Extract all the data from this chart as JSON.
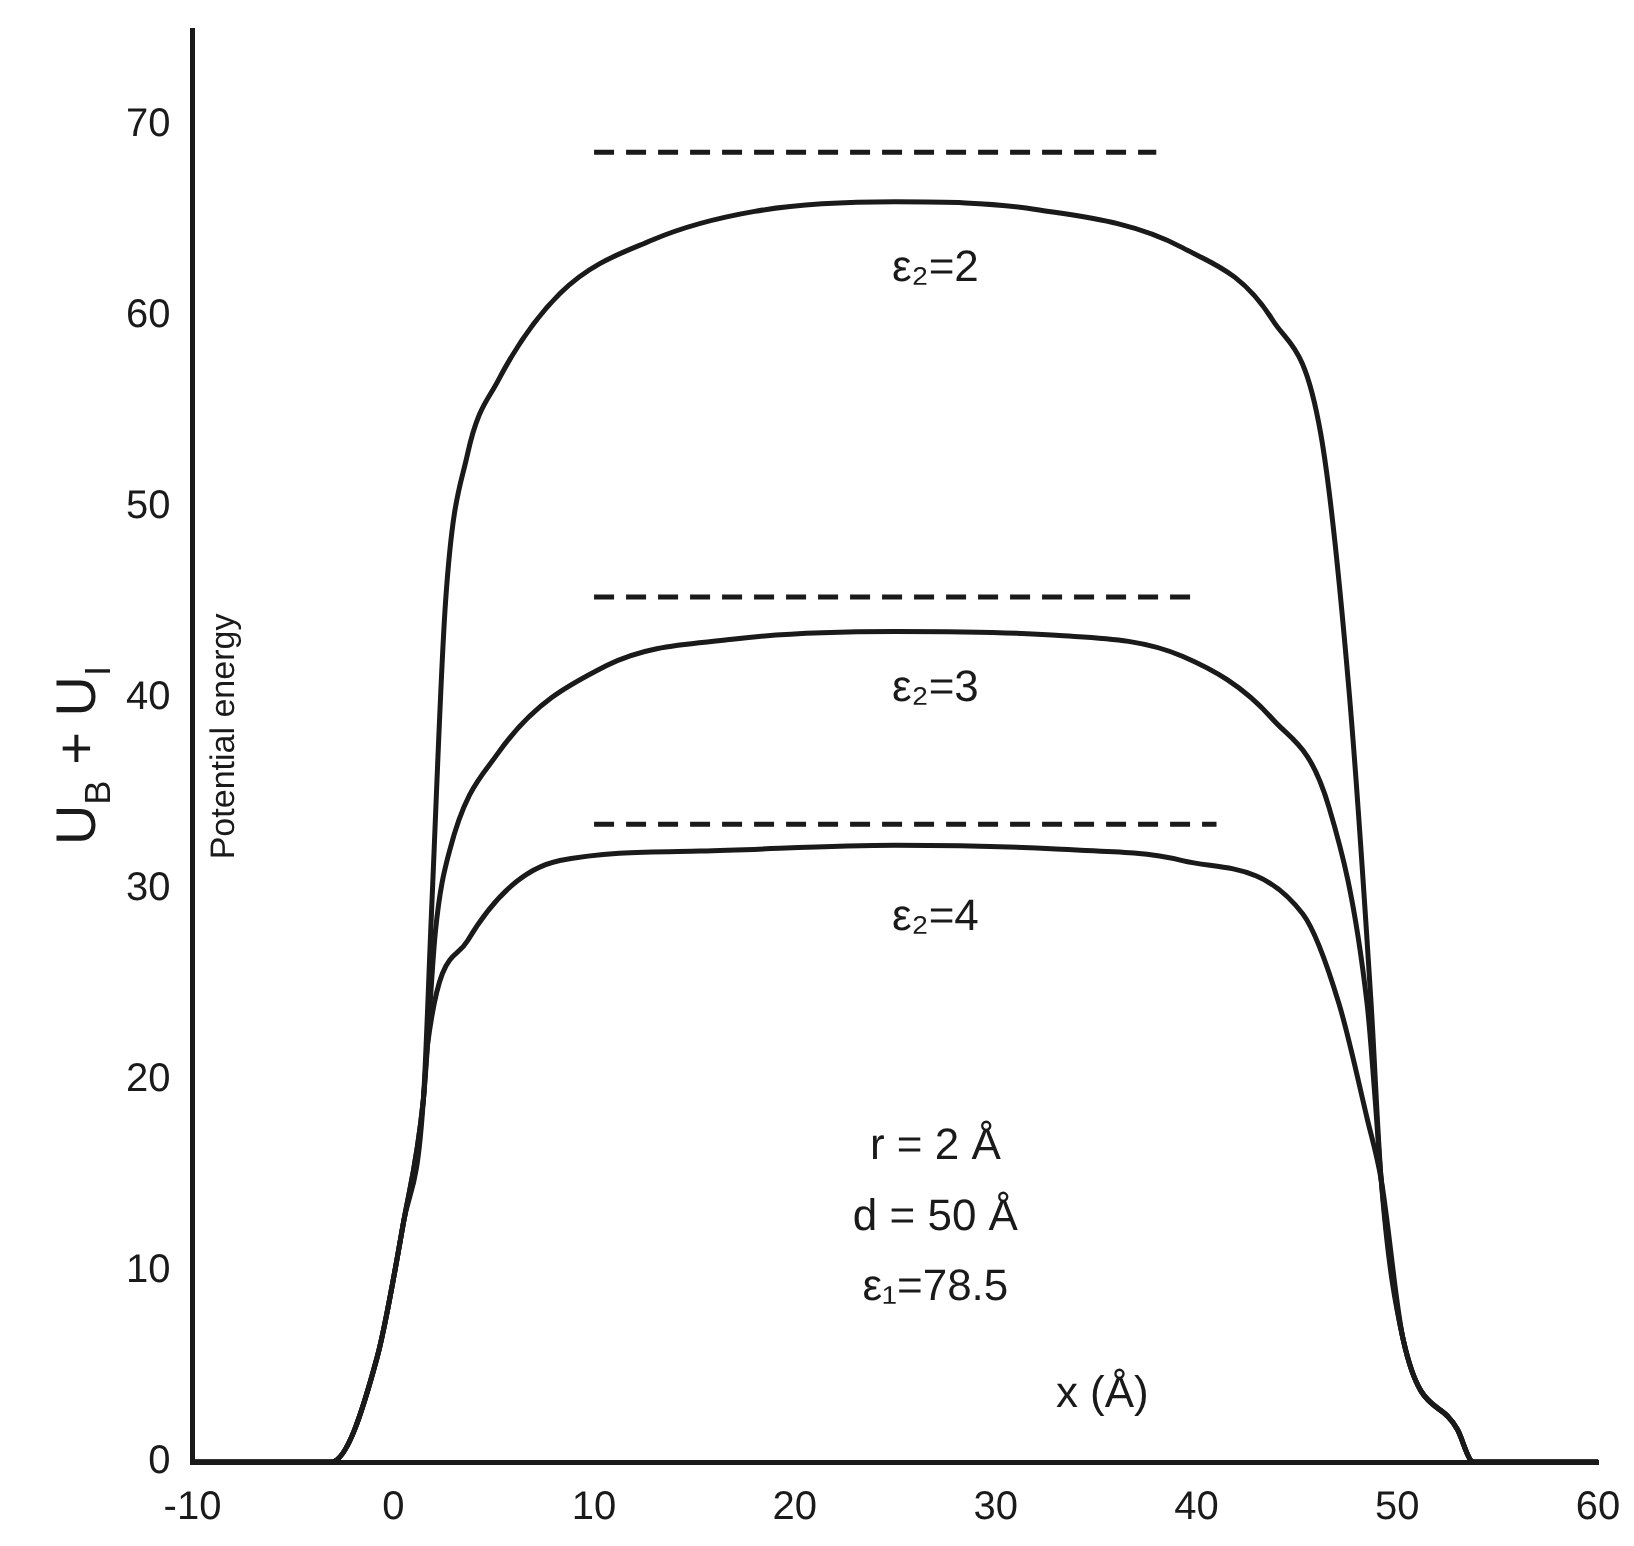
{
  "chart_data": {
    "type": "line",
    "xlabel": "x (Å)",
    "ylabel": "U$_{B}$ + U$_{I}$",
    "xlim": [
      -10,
      60
    ],
    "xticks": [
      -10,
      0,
      10,
      20,
      30,
      40,
      50,
      60
    ],
    "ylim": [
      0,
      75
    ],
    "yticks": [
      0,
      10,
      20,
      30,
      40,
      50,
      60,
      70
    ],
    "grid": false,
    "legend": false,
    "marker": "none",
    "series": [
      {
        "color": "#1a1a1a",
        "line_style": "solid",
        "x": [
          -10,
          -3.1,
          -0.8,
          0.5,
          1.5,
          1.9,
          2.6,
          3.7,
          5.2,
          8.3,
          12.9,
          18,
          25,
          32,
          39.3,
          43.8,
          46.2,
          47.6,
          48.7,
          49.2,
          50.3,
          53,
          53.8,
          60
        ],
        "values": [
          0,
          0,
          5.5,
          12.5,
          19,
          28.7,
          45,
          52.8,
          56.6,
          61.2,
          64,
          65.5,
          66,
          65.6,
          63.6,
          59.8,
          53.8,
          40.4,
          24,
          14.8,
          6.4,
          1.7,
          0,
          0
        ]
      },
      {
        "color": "#1a1a1a",
        "line_style": "solid",
        "x": [
          -10,
          -3.1,
          -0.8,
          0.5,
          1.5,
          2.1,
          2.8,
          5.2,
          10.6,
          17,
          25,
          33,
          39.3,
          43.8,
          46.6,
          48.5,
          48.9,
          49.2,
          50.3,
          53,
          53.8,
          60
        ],
        "values": [
          0,
          0,
          5.5,
          12.5,
          19,
          27.8,
          32,
          37.1,
          41.7,
          43.1,
          43.5,
          43.3,
          42.2,
          38.9,
          34.3,
          24,
          19,
          14.8,
          6.4,
          1.7,
          0,
          0
        ]
      },
      {
        "color": "#1a1a1a",
        "line_style": "solid",
        "x": [
          -10,
          -3.1,
          -0.8,
          0.5,
          1.5,
          1.7,
          3.7,
          8.3,
          15.3,
          25,
          33,
          39.3,
          45.3,
          47.1,
          48.5,
          49.2,
          50.3,
          53,
          53.8,
          60
        ],
        "values": [
          0,
          0,
          5.5,
          12.5,
          19,
          21.8,
          27.3,
          31.5,
          32,
          32.3,
          32.1,
          31.5,
          28.7,
          24,
          18,
          14.8,
          6.4,
          1.7,
          0,
          0
        ]
      },
      {
        "color": "#1a1a1a",
        "line_style": "dashed",
        "x": [
          10,
          38
        ],
        "values": [
          68.6,
          68.6
        ]
      },
      {
        "color": "#1a1a1a",
        "line_style": "dashed",
        "x": [
          10,
          40
        ],
        "values": [
          45.3,
          45.3
        ]
      },
      {
        "color": "#1a1a1a",
        "line_style": "dashed",
        "x": [
          10,
          41
        ],
        "values": [
          33.4,
          33.4
        ]
      }
    ],
    "annotations": [
      "ε₂=2",
      "ε₂=3",
      "ε₂=4",
      "Potential energy",
      "r = 2 Å",
      "d = 50 Å",
      "ε₁=78.5"
    ]
  }
}
